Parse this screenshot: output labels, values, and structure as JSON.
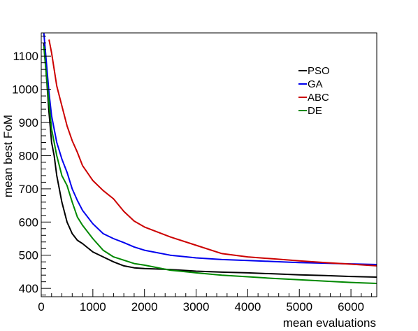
{
  "chart_data": {
    "type": "line",
    "xlabel": "mean evaluations",
    "ylabel": "mean best FoM",
    "xlim": [
      0,
      6500
    ],
    "ylim": [
      375,
      1170
    ],
    "x_ticks": [
      0,
      1000,
      2000,
      3000,
      4000,
      5000,
      6000
    ],
    "y_ticks": [
      400,
      500,
      600,
      700,
      800,
      900,
      1000,
      1100
    ],
    "x_tick_labels": [
      "0",
      "1000",
      "2000",
      "3000",
      "4000",
      "5000",
      "6000"
    ],
    "y_tick_labels": [
      "400",
      "500",
      "600",
      "700",
      "800",
      "900",
      "1000",
      "1100"
    ],
    "grid": false,
    "legend_position": "top-right",
    "series": [
      {
        "name": "PSO",
        "color": "#000000",
        "x": [
          50,
          100,
          150,
          200,
          250,
          300,
          400,
          500,
          600,
          700,
          800,
          1000,
          1200,
          1400,
          1600,
          1800,
          2000,
          2500,
          3000,
          3500,
          4000,
          4500,
          5000,
          5500,
          6000,
          6500
        ],
        "y": [
          1140,
          1040,
          930,
          840,
          800,
          740,
          660,
          600,
          565,
          545,
          535,
          510,
          495,
          480,
          468,
          462,
          460,
          457,
          452,
          449,
          447,
          444,
          441,
          439,
          436,
          434
        ]
      },
      {
        "name": "GA",
        "color": "#0000ee",
        "x": [
          50,
          100,
          150,
          200,
          250,
          300,
          400,
          500,
          600,
          700,
          800,
          1000,
          1200,
          1400,
          1600,
          1800,
          2000,
          2500,
          3000,
          3500,
          4000,
          4500,
          5000,
          5500,
          6000,
          6500
        ],
        "y": [
          1170,
          1080,
          990,
          920,
          880,
          840,
          790,
          750,
          700,
          665,
          635,
          595,
          565,
          550,
          538,
          525,
          515,
          500,
          492,
          487,
          484,
          481,
          478,
          476,
          474,
          472
        ]
      },
      {
        "name": "ABC",
        "color": "#cc0000",
        "x": [
          150,
          200,
          250,
          300,
          400,
          500,
          600,
          700,
          800,
          1000,
          1200,
          1400,
          1600,
          1800,
          2000,
          2500,
          3000,
          3500,
          4000,
          4500,
          5000,
          5500,
          6000,
          6500
        ],
        "y": [
          1150,
          1110,
          1060,
          1010,
          950,
          890,
          845,
          810,
          770,
          725,
          695,
          670,
          632,
          603,
          585,
          555,
          530,
          505,
          495,
          489,
          483,
          478,
          473,
          468
        ]
      },
      {
        "name": "DE",
        "color": "#008800",
        "x": [
          50,
          100,
          150,
          200,
          250,
          300,
          400,
          500,
          600,
          700,
          800,
          1000,
          1200,
          1400,
          1600,
          1800,
          2000,
          2500,
          3000,
          3500,
          4000,
          4500,
          5000,
          5500,
          6000,
          6500
        ],
        "y": [
          1130,
          1040,
          960,
          880,
          840,
          800,
          740,
          710,
          660,
          615,
          590,
          550,
          515,
          495,
          485,
          475,
          470,
          455,
          447,
          440,
          435,
          430,
          426,
          422,
          418,
          415
        ]
      }
    ]
  }
}
